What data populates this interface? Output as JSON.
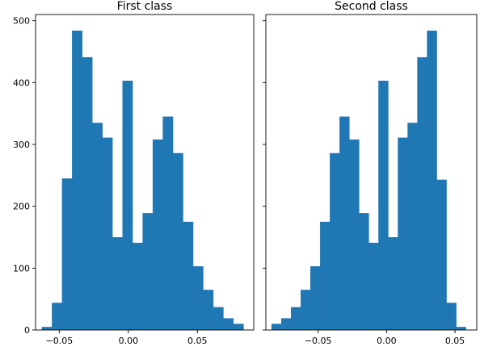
{
  "chart_data": [
    {
      "type": "bar",
      "title": "First class",
      "xlabel": "",
      "ylabel": "",
      "xlim": [
        -0.0672,
        0.0908
      ],
      "ylim": [
        0,
        510
      ],
      "xticks": [
        -0.05,
        0.0,
        0.05
      ],
      "xtick_labels": [
        "−0.05",
        "0.00",
        "0.05"
      ],
      "yticks": [
        0,
        100,
        200,
        300,
        400,
        500
      ],
      "ytick_labels": [
        "0",
        "100",
        "200",
        "300",
        "400",
        "500"
      ],
      "bin_edges": [
        -0.0627,
        -0.0554,
        -0.0481,
        -0.0408,
        -0.0335,
        -0.0262,
        -0.0189,
        -0.0116,
        -0.0043,
        0.003,
        0.0103,
        0.0176,
        0.0249,
        0.0322,
        0.0395,
        0.0468,
        0.0541,
        0.0614,
        0.0687,
        0.076,
        0.0833
      ],
      "values": [
        5,
        44,
        245,
        484,
        441,
        335,
        311,
        150,
        403,
        141,
        189,
        308,
        345,
        286,
        175,
        103,
        65,
        37,
        19,
        10
      ],
      "color": "#1f77b4",
      "grid": false
    },
    {
      "type": "bar",
      "title": "Second class",
      "xlabel": "",
      "ylabel": "",
      "xlim": [
        -0.0882,
        0.0659
      ],
      "ylim": [
        0,
        510
      ],
      "xticks": [
        -0.05,
        0.0,
        0.05
      ],
      "xtick_labels": [
        "−0.05",
        "0.00",
        "0.05"
      ],
      "yticks": [
        0,
        100,
        200,
        300,
        400,
        500
      ],
      "ytick_labels": [
        "",
        "",
        "",
        "",
        "",
        ""
      ],
      "bin_edges": [
        -0.0841,
        -0.077,
        -0.0699,
        -0.0628,
        -0.0557,
        -0.0486,
        -0.0415,
        -0.0344,
        -0.0273,
        -0.0202,
        -0.0131,
        -0.006,
        0.0011,
        0.0082,
        0.0153,
        0.0224,
        0.0295,
        0.0366,
        0.0437,
        0.0508,
        0.0579
      ],
      "values": [
        10,
        19,
        37,
        65,
        103,
        175,
        286,
        345,
        308,
        189,
        141,
        403,
        150,
        311,
        335,
        441,
        484,
        243,
        44,
        5
      ],
      "color": "#1f77b4",
      "grid": false
    }
  ]
}
